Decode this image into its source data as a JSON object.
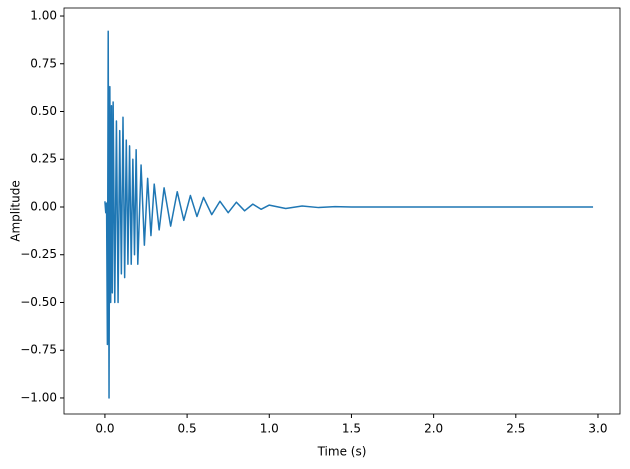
{
  "chart_data": {
    "type": "line",
    "xlabel": "Time (s)",
    "ylabel": "Amplitude",
    "x": [
      0,
      0.005,
      0.01,
      0.015,
      0.02,
      0.025,
      0.03,
      0.035,
      0.04,
      0.045,
      0.05,
      0.06,
      0.07,
      0.08,
      0.09,
      0.1,
      0.11,
      0.12,
      0.13,
      0.14,
      0.15,
      0.16,
      0.17,
      0.18,
      0.19,
      0.2,
      0.22,
      0.24,
      0.26,
      0.28,
      0.3,
      0.33,
      0.36,
      0.4,
      0.44,
      0.48,
      0.52,
      0.56,
      0.6,
      0.65,
      0.7,
      0.75,
      0.8,
      0.85,
      0.9,
      0.95,
      1.0,
      1.1,
      1.2,
      1.3,
      1.4,
      1.5,
      2.97
    ],
    "series": [
      {
        "color": "#1f77b4",
        "values": [
          0.03,
          -0.03,
          0.02,
          -0.72,
          0.92,
          -1.0,
          0.63,
          -0.5,
          0.53,
          -0.45,
          0.55,
          -0.5,
          0.45,
          -0.5,
          0.4,
          -0.35,
          0.47,
          -0.37,
          0.35,
          -0.3,
          0.32,
          -0.3,
          0.25,
          -0.25,
          0.3,
          -0.3,
          0.22,
          -0.2,
          0.15,
          -0.15,
          0.12,
          -0.12,
          0.1,
          -0.1,
          0.08,
          -0.07,
          0.06,
          -0.05,
          0.05,
          -0.04,
          0.03,
          -0.03,
          0.025,
          -0.02,
          0.015,
          -0.012,
          0.01,
          -0.008,
          0.005,
          -0.003,
          0.002,
          0,
          0
        ]
      }
    ],
    "xlim": [
      -0.249,
      3.134
    ],
    "ylim": [
      -1.084,
      1.042
    ],
    "xticks": [
      {
        "value": 0,
        "label": "0.0"
      },
      {
        "value": 0.5,
        "label": "0.5"
      },
      {
        "value": 1,
        "label": "1.0"
      },
      {
        "value": 1.5,
        "label": "1.5"
      },
      {
        "value": 2,
        "label": "2.0"
      },
      {
        "value": 2.5,
        "label": "2.5"
      },
      {
        "value": 3,
        "label": "3.0"
      }
    ],
    "yticks": [
      {
        "value": -1,
        "label": "−1.00"
      },
      {
        "value": -0.75,
        "label": "−0.75"
      },
      {
        "value": -0.5,
        "label": "−0.50"
      },
      {
        "value": -0.25,
        "label": "−0.25"
      },
      {
        "value": 0,
        "label": "0.00"
      },
      {
        "value": 0.25,
        "label": "0.25"
      },
      {
        "value": 0.5,
        "label": "0.50"
      },
      {
        "value": 0.75,
        "label": "0.75"
      },
      {
        "value": 1,
        "label": "1.00"
      }
    ]
  }
}
